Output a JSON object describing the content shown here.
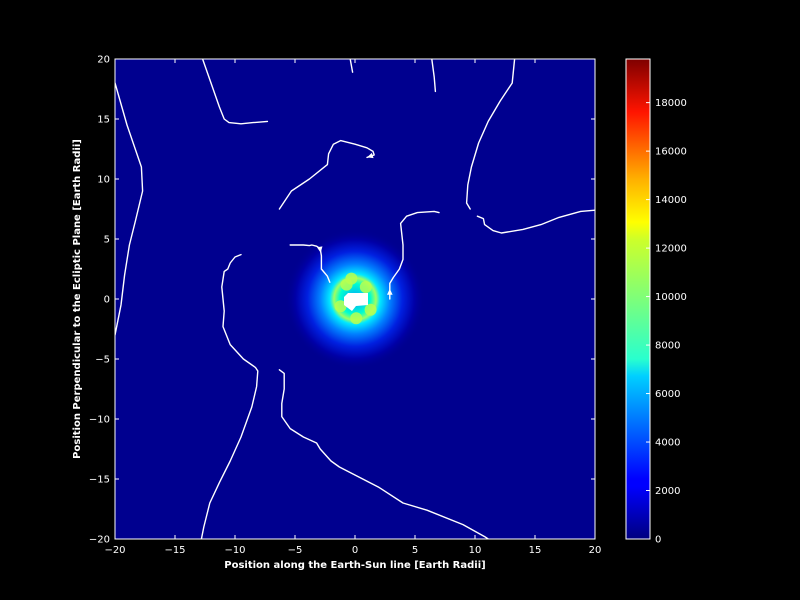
{
  "chart_data": {
    "type": "heatmap",
    "title": "",
    "xlabel": "Position along the Earth-Sun line [Earth Radii]",
    "ylabel": "Position Perpendicular to the Ecliptic Plane [Earth Radii]",
    "xlim": [
      -20,
      20
    ],
    "ylim": [
      -20,
      20
    ],
    "x_ticks": [
      -20,
      -15,
      -10,
      -5,
      0,
      5,
      10,
      15,
      20
    ],
    "y_ticks": [
      -20,
      -15,
      -10,
      -5,
      0,
      5,
      10,
      15,
      20
    ],
    "x_tick_labels": [
      "−20",
      "−15",
      "−10",
      "−5",
      "0",
      "5",
      "10",
      "15",
      "20"
    ],
    "y_tick_labels": [
      "−20",
      "−15",
      "−10",
      "−5",
      "0",
      "5",
      "10",
      "15",
      "20"
    ],
    "colormap": "jet",
    "colorbar": {
      "min": 0,
      "max": 19800,
      "ticks": [
        0,
        2000,
        4000,
        6000,
        8000,
        10000,
        12000,
        14000,
        16000,
        18000
      ],
      "tick_labels": [
        "0",
        "2000",
        "4000",
        "6000",
        "8000",
        "10000",
        "12000",
        "14000",
        "16000",
        "18000"
      ]
    },
    "background_value": 0,
    "ring": {
      "center": [
        0,
        0
      ],
      "radius": 1.6,
      "peak_value": 10500
    },
    "masked_region": {
      "center": [
        0,
        0
      ],
      "radius": 1.0,
      "color": "#ffffff"
    },
    "streamlines": [
      {
        "points": [
          [
            -20,
            18
          ],
          [
            -19,
            14.5
          ],
          [
            -17.8,
            11
          ],
          [
            -17.7,
            9
          ],
          [
            -18.3,
            6.5
          ],
          [
            -18.8,
            4.5
          ],
          [
            -19.2,
            2
          ],
          [
            -19.5,
            -0.5
          ],
          [
            -20,
            -3
          ]
        ]
      },
      {
        "points": [
          [
            -12.7,
            20
          ],
          [
            -12,
            18
          ],
          [
            -11.3,
            16
          ],
          [
            -10.9,
            15
          ],
          [
            -10.5,
            14.7
          ],
          [
            -9.5,
            14.6
          ],
          [
            -8.5,
            14.7
          ],
          [
            -7.3,
            14.8
          ]
        ]
      },
      {
        "points": [
          [
            -9.5,
            3.7
          ],
          [
            -10,
            3.5
          ],
          [
            -10.4,
            3
          ],
          [
            -10.6,
            2.5
          ],
          [
            -10.9,
            2.3
          ],
          [
            -11.1,
            1
          ],
          [
            -10.9,
            -1
          ],
          [
            -11,
            -2.3
          ],
          [
            -10.4,
            -3.8
          ],
          [
            -9.3,
            -5
          ],
          [
            -8.3,
            -5.7
          ],
          [
            -8.1,
            -6
          ],
          [
            -8.2,
            -7.3
          ],
          [
            -8.6,
            -9
          ],
          [
            -9.5,
            -11.5
          ],
          [
            -10.4,
            -13.5
          ],
          [
            -11.3,
            -15.3
          ],
          [
            -12.1,
            -17
          ],
          [
            -12.6,
            -19
          ],
          [
            -12.8,
            -20
          ]
        ]
      },
      {
        "points": [
          [
            -6.3,
            -5.9
          ],
          [
            -5.9,
            -6.2
          ],
          [
            -5.9,
            -7.5
          ],
          [
            -6.1,
            -8.7
          ],
          [
            -6.1,
            -9.8
          ],
          [
            -5.4,
            -10.8
          ],
          [
            -4.3,
            -11.5
          ],
          [
            -3.2,
            -12
          ],
          [
            -2.9,
            -12.5
          ],
          [
            -2,
            -13.5
          ],
          [
            -1.3,
            -14
          ],
          [
            2,
            -15.7
          ],
          [
            4,
            -17
          ],
          [
            6,
            -17.6
          ],
          [
            9,
            -18.8
          ],
          [
            10.8,
            -19.8
          ],
          [
            11.1,
            -20
          ]
        ]
      },
      {
        "points": [
          [
            -6.3,
            7.5
          ],
          [
            -5.3,
            9
          ],
          [
            -3.8,
            10
          ],
          [
            -2.3,
            11.2
          ],
          [
            -2.2,
            12.1
          ],
          [
            -1.8,
            12.9
          ],
          [
            -1.2,
            13.2
          ],
          [
            0,
            12.9
          ],
          [
            1,
            12.6
          ],
          [
            1.5,
            12.3
          ],
          [
            1.6,
            12
          ],
          [
            1.3,
            11.9
          ],
          [
            1,
            11.8
          ]
        ],
        "arrow_at_end": true
      },
      {
        "points": [
          [
            -5.4,
            4.5
          ],
          [
            -4.3,
            4.5
          ],
          [
            -3.8,
            4.45
          ],
          [
            -3.6,
            4.5
          ],
          [
            -3.2,
            4.4
          ],
          [
            -2.9,
            4.2
          ],
          [
            -2.8,
            3.6
          ],
          [
            -2.8,
            2.5
          ],
          [
            -2.3,
            1.9
          ],
          [
            -2.1,
            1.4
          ]
        ],
        "arrow_at": [
          -2.9,
          4.1
        ]
      },
      {
        "points": [
          [
            -0.4,
            20
          ],
          [
            -0.2,
            18.9
          ]
        ]
      },
      {
        "points": [
          [
            6.4,
            20
          ],
          [
            6.6,
            18.5
          ],
          [
            6.7,
            17.3
          ]
        ]
      },
      {
        "points": [
          [
            2.9,
            0
          ],
          [
            2.9,
            1.3
          ],
          [
            3.2,
            1.8
          ],
          [
            3.7,
            2.5
          ],
          [
            4,
            3.3
          ],
          [
            4,
            4.5
          ],
          [
            3.8,
            6.3
          ],
          [
            4.3,
            6.9
          ],
          [
            5.2,
            7.2
          ],
          [
            6.6,
            7.3
          ],
          [
            7,
            7.2
          ]
        ],
        "arrow_at": [
          2.9,
          0.6
        ]
      },
      {
        "points": [
          [
            13.3,
            20
          ],
          [
            13.1,
            18
          ],
          [
            12.1,
            16.5
          ],
          [
            11.1,
            14.8
          ],
          [
            10.3,
            13
          ],
          [
            9.7,
            11
          ],
          [
            9.4,
            9.5
          ],
          [
            9.3,
            8
          ],
          [
            9.6,
            7.5
          ]
        ]
      },
      {
        "points": [
          [
            10.2,
            6.9
          ],
          [
            10.7,
            6.7
          ],
          [
            10.8,
            6.2
          ],
          [
            11.5,
            5.7
          ],
          [
            12.2,
            5.5
          ],
          [
            14,
            5.8
          ],
          [
            15.5,
            6.2
          ],
          [
            17,
            6.8
          ],
          [
            18.8,
            7.3
          ],
          [
            20,
            7.4
          ]
        ]
      }
    ]
  }
}
